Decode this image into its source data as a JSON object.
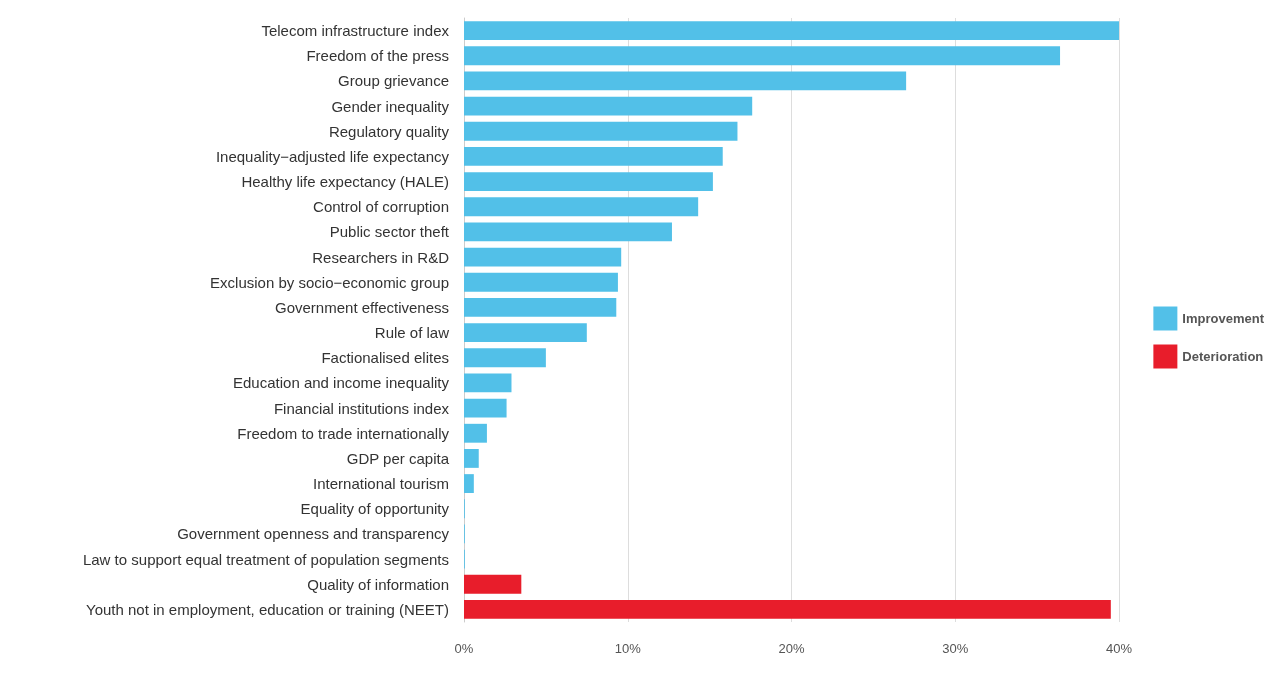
{
  "chart_data": {
    "type": "bar",
    "orientation": "horizontal",
    "stacked": true,
    "categories": [
      "Telecom infrastructure index",
      "Freedom of the press",
      "Group grievance",
      "Gender inequality",
      "Regulatory quality",
      "Inequality−adjusted life expectancy",
      "Healthy life expectancy (HALE)",
      "Control of corruption",
      "Public sector theft",
      "Researchers in R&D",
      "Exclusion by socio−economic group",
      "Government effectiveness",
      "Rule of law",
      "Factionalised elites",
      "Education and income inequality",
      "Financial institutions index",
      "Freedom to trade internationally",
      "GDP per capita",
      "International tourism",
      "Equality of opportunity",
      "Government openness and transparency",
      "Law to support equal treatment of population segments",
      "Quality of information",
      "Youth not in employment, education or training (NEET)"
    ],
    "series": [
      {
        "name": "Improvement",
        "color": "#52c0e8",
        "values": [
          40,
          36.4,
          27,
          17.6,
          16.7,
          15.8,
          15.2,
          14.3,
          12.7,
          9.6,
          9.4,
          9.3,
          7.5,
          5,
          2.9,
          2.6,
          1.4,
          0.9,
          0.6,
          0.05,
          0.05,
          0.05,
          null,
          null
        ]
      },
      {
        "name": "Deterioration",
        "color": "#e81d2b",
        "values": [
          null,
          null,
          null,
          null,
          null,
          null,
          null,
          null,
          null,
          null,
          null,
          null,
          null,
          null,
          null,
          null,
          null,
          null,
          null,
          null,
          null,
          null,
          3.5,
          39.5
        ]
      }
    ],
    "xlim": [
      0,
      40
    ],
    "xticks": [
      {
        "value": 0,
        "label": "0%"
      },
      {
        "value": 10,
        "label": "10%"
      },
      {
        "value": 20,
        "label": "20%"
      },
      {
        "value": 30,
        "label": "30%"
      },
      {
        "value": 40,
        "label": "40%"
      }
    ],
    "grid": "x",
    "legend": "right"
  }
}
